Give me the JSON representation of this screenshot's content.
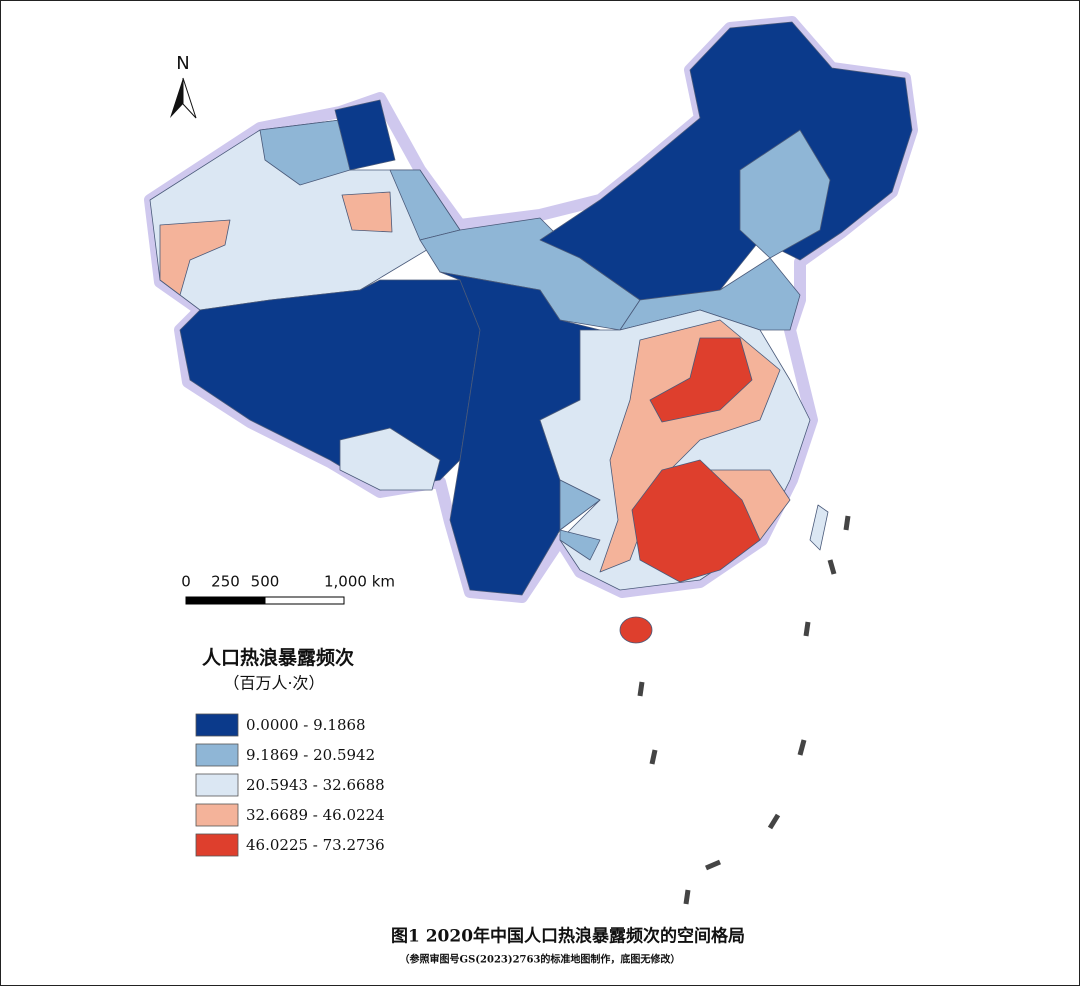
{
  "north_arrow": "N",
  "scale_bar": {
    "ticks": [
      0,
      250,
      500,
      {
        "value": 1000,
        "label": "1,000 km"
      }
    ]
  },
  "legend": {
    "title": "人口热浪暴露频次",
    "subtitle": "（百万人·次）",
    "items": [
      {
        "label": "0.0000 - 9.1868",
        "color": "#0b3a8b"
      },
      {
        "label": "9.1869 - 20.5942",
        "color": "#8fb6d6"
      },
      {
        "label": "20.5943 - 32.6688",
        "color": "#dbe7f3"
      },
      {
        "label": "32.6689 - 46.0224",
        "color": "#f4b39a"
      },
      {
        "label": "46.0225 - 73.2736",
        "color": "#de3f2d"
      }
    ]
  },
  "caption": "图1  2020年中国人口热浪暴露频次的空间格局",
  "note": "（参照审图号GS(2023)2763的标准地图制作，底图无修改）"
}
